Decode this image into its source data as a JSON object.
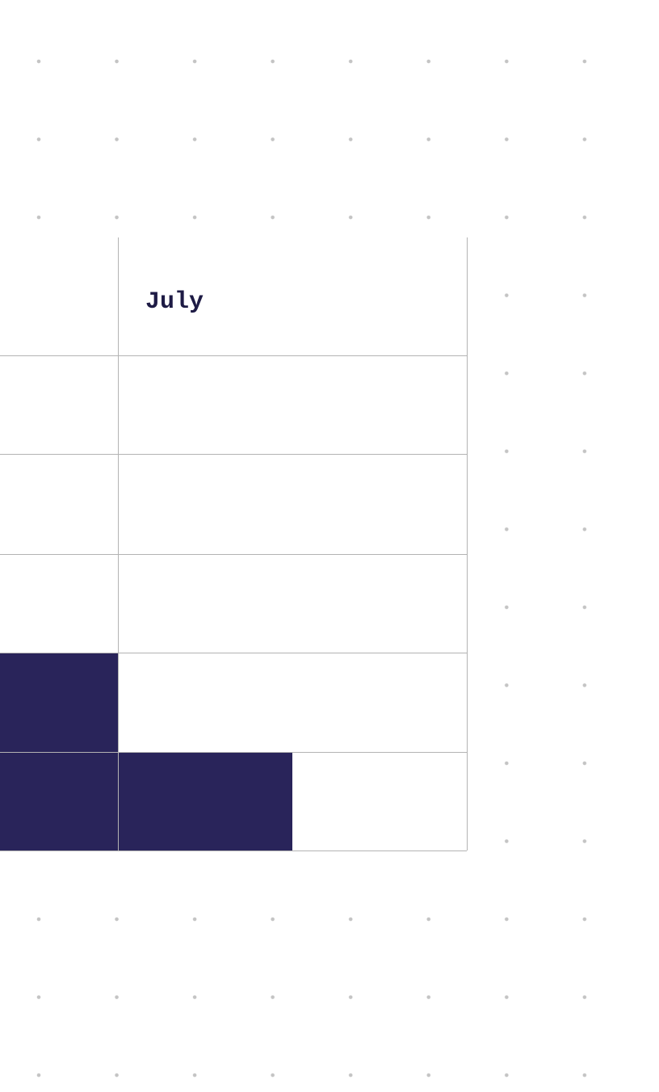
{
  "table": {
    "header": "July"
  }
}
